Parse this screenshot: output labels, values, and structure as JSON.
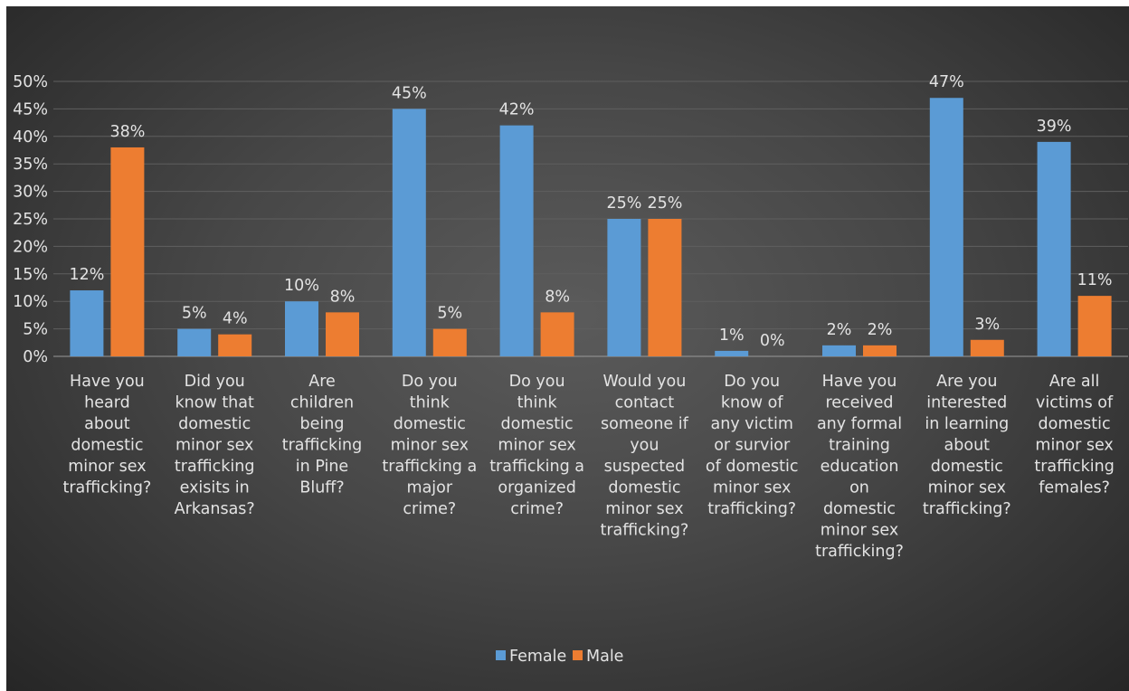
{
  "chart_data": {
    "type": "bar",
    "title": "",
    "xlabel": "",
    "ylabel": "",
    "categories": [
      [
        "Have you",
        "heard",
        "about",
        "domestic",
        "minor sex",
        "trafficking?"
      ],
      [
        "Did you",
        "know that",
        "domestic",
        "minor sex",
        "trafficking",
        "exisits in",
        "Arkansas?"
      ],
      [
        "Are",
        "children",
        "being",
        "trafficking",
        "in Pine",
        "Bluff?"
      ],
      [
        "Do you",
        "think",
        "domestic",
        "minor sex",
        "trafficking a",
        "major",
        "crime?"
      ],
      [
        "Do you",
        "think",
        "domestic",
        "minor sex",
        "trafficking a",
        "organized",
        "crime?"
      ],
      [
        "Would you",
        "contact",
        "someone if",
        "you",
        "suspected",
        "domestic",
        "minor sex",
        "trafficking?"
      ],
      [
        "Do you",
        "know of",
        "any victim",
        "or survior",
        "of domestic",
        "minor sex",
        "trafficking?"
      ],
      [
        "Have you",
        "received",
        "any formal",
        "training",
        "education",
        "on",
        "domestic",
        "minor sex",
        "trafficking?"
      ],
      [
        "Are you",
        "interested",
        "in learning",
        "about",
        "domestic",
        "minor sex",
        "trafficking?"
      ],
      [
        "Are all",
        "victims of",
        "domestic",
        "minor sex",
        "trafficking",
        "females?"
      ]
    ],
    "series": [
      {
        "name": "Female",
        "color": "#5b9bd5",
        "values": [
          12,
          5,
          10,
          45,
          42,
          25,
          1,
          2,
          47,
          39
        ],
        "labels": [
          "12%",
          "5%",
          "10%",
          "45%",
          "42%",
          "25%",
          "1%",
          "2%",
          "47%",
          "39%"
        ]
      },
      {
        "name": "Male",
        "color": "#ed7d31",
        "values": [
          38,
          4,
          8,
          5,
          8,
          25,
          0,
          2,
          3,
          11
        ],
        "labels": [
          "38%",
          "4%",
          "8%",
          "5%",
          "8%",
          "25%",
          "0%",
          "2%",
          "3%",
          "11%"
        ]
      }
    ],
    "ylim": [
      0,
      50
    ],
    "yticks": [
      "0%",
      "5%",
      "10%",
      "15%",
      "20%",
      "25%",
      "30%",
      "35%",
      "40%",
      "45%",
      "50%"
    ],
    "grid": true,
    "legend": "bottom"
  }
}
